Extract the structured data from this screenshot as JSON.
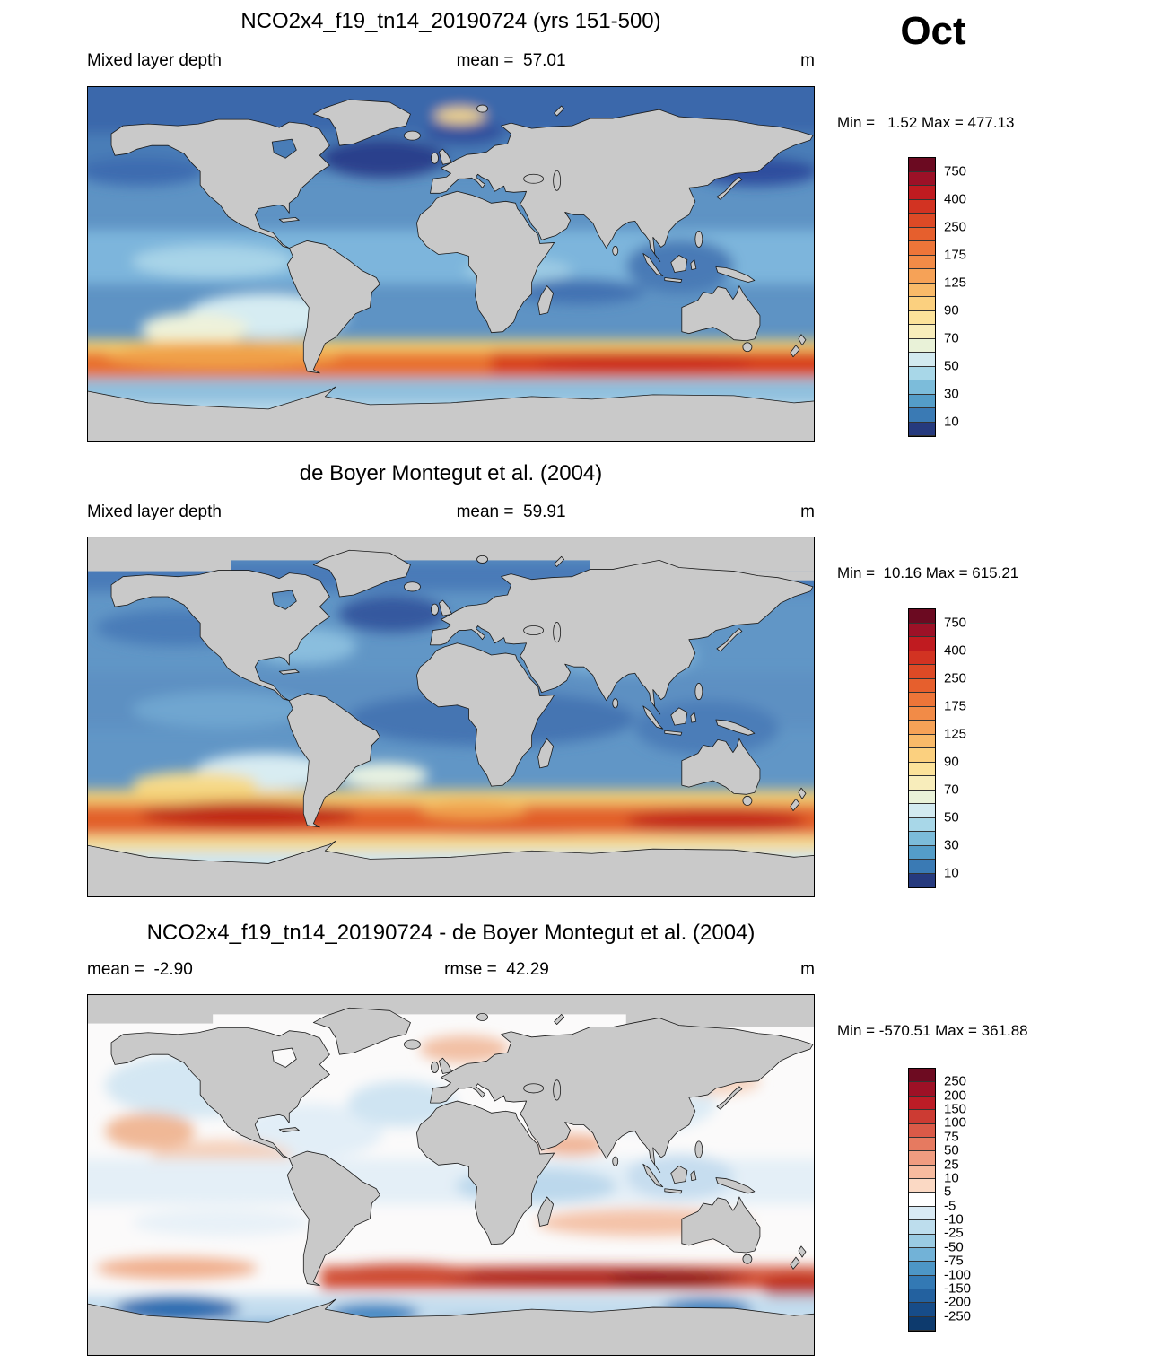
{
  "page": {
    "month": "Oct"
  },
  "panels": [
    {
      "title": "NCO2x4_f19_tn14_20190724 (yrs 151-500)",
      "left_label": "Mixed layer depth",
      "center_label": "mean =  57.01",
      "units": "m",
      "minmax_text": "Min =   1.52 Max = 477.13",
      "colorbar": {
        "colors": [
          "#6b0a21",
          "#9c1127",
          "#c01b20",
          "#d23322",
          "#dd4a26",
          "#e65f2d",
          "#ed7539",
          "#f28b47",
          "#f6a257",
          "#f9ba69",
          "#fbd07f",
          "#fce29a",
          "#f8edbb",
          "#e9f2d8",
          "#d2eaf0",
          "#a8d7e8",
          "#7cbcda",
          "#549dc8",
          "#3a7ab4",
          "#263a7e"
        ],
        "ticks": [
          {
            "label": "750",
            "pos": 1
          },
          {
            "label": "400",
            "pos": 3
          },
          {
            "label": "250",
            "pos": 5
          },
          {
            "label": "175",
            "pos": 7
          },
          {
            "label": "125",
            "pos": 9
          },
          {
            "label": "90",
            "pos": 11
          },
          {
            "label": "70",
            "pos": 13
          },
          {
            "label": "50",
            "pos": 15
          },
          {
            "label": "30",
            "pos": 17
          },
          {
            "label": "10",
            "pos": 19
          }
        ]
      }
    },
    {
      "title": "de Boyer Montegut et al. (2004)",
      "left_label": "Mixed layer depth",
      "center_label": "mean =  59.91",
      "units": "m",
      "minmax_text": "Min =  10.16 Max = 615.21",
      "colorbar": {
        "colors": [
          "#6b0a21",
          "#9c1127",
          "#c01b20",
          "#d23322",
          "#dd4a26",
          "#e65f2d",
          "#ed7539",
          "#f28b47",
          "#f6a257",
          "#f9ba69",
          "#fbd07f",
          "#fce29a",
          "#f8edbb",
          "#e9f2d8",
          "#d2eaf0",
          "#a8d7e8",
          "#7cbcda",
          "#549dc8",
          "#3a7ab4",
          "#263a7e"
        ],
        "ticks": [
          {
            "label": "750",
            "pos": 1
          },
          {
            "label": "400",
            "pos": 3
          },
          {
            "label": "250",
            "pos": 5
          },
          {
            "label": "175",
            "pos": 7
          },
          {
            "label": "125",
            "pos": 9
          },
          {
            "label": "90",
            "pos": 11
          },
          {
            "label": "70",
            "pos": 13
          },
          {
            "label": "50",
            "pos": 15
          },
          {
            "label": "30",
            "pos": 17
          },
          {
            "label": "10",
            "pos": 19
          }
        ]
      }
    },
    {
      "title": "NCO2x4_f19_tn14_20190724 - de Boyer Montegut et al. (2004)",
      "left_label": "mean =  -2.90",
      "center_label": "rmse =  42.29",
      "units": "m",
      "minmax_text": "Min = -570.51 Max = 361.88",
      "colorbar": {
        "colors": [
          "#6d0b21",
          "#9d1126",
          "#bc1c26",
          "#cc3b33",
          "#da5a48",
          "#e67a60",
          "#f09c80",
          "#f7bb9f",
          "#fbd9c4",
          "#ffffff",
          "#d9eaf4",
          "#bddded",
          "#9acbe3",
          "#72b2d7",
          "#4d96c6",
          "#3379b4",
          "#23619f",
          "#174c88",
          "#0d3a6d"
        ],
        "ticks": [
          {
            "label": "250",
            "pos": 1
          },
          {
            "label": "200",
            "pos": 2
          },
          {
            "label": "150",
            "pos": 3
          },
          {
            "label": "100",
            "pos": 4
          },
          {
            "label": "75",
            "pos": 5
          },
          {
            "label": "50",
            "pos": 6
          },
          {
            "label": "25",
            "pos": 7
          },
          {
            "label": "10",
            "pos": 8
          },
          {
            "label": "5",
            "pos": 9
          },
          {
            "label": "-5",
            "pos": 10
          },
          {
            "label": "-10",
            "pos": 11
          },
          {
            "label": "-25",
            "pos": 12
          },
          {
            "label": "-50",
            "pos": 13
          },
          {
            "label": "-75",
            "pos": 14
          },
          {
            "label": "-100",
            "pos": 15
          },
          {
            "label": "-150",
            "pos": 16
          },
          {
            "label": "-200",
            "pos": 17
          },
          {
            "label": "-250",
            "pos": 18
          }
        ]
      }
    }
  ],
  "chart_data": [
    {
      "type": "heatmap",
      "title": "NCO2x4_f19_tn14_20190724 (yrs 151-500)",
      "variable": "Mixed layer depth",
      "units": "m",
      "month": "Oct",
      "mean": 57.01,
      "min": 1.52,
      "max": 477.13,
      "colorbar_ticks": [
        750,
        400,
        250,
        175,
        125,
        90,
        70,
        50,
        30,
        10
      ],
      "projection": "global equirectangular world map",
      "legend_position": "right",
      "notes": "Model mixed layer depth: deep (orange/red, 125-750 m) circumpolar band near 40-55S; shallow (dark blue, <30 m) high-latitude North Atlantic/Arctic and tropics mid-blue; pale 70-90 m zone in subtropical southeast Pacific; deep-mixing yellow patch in Nordic Seas."
    },
    {
      "type": "heatmap",
      "title": "de Boyer Montegut et al. (2004)",
      "variable": "Mixed layer depth (observations)",
      "units": "m",
      "month": "Oct",
      "mean": 59.91,
      "min": 10.16,
      "max": 615.21,
      "colorbar_ticks": [
        750,
        400,
        250,
        175,
        125,
        90,
        70,
        50,
        30,
        10
      ],
      "projection": "global equirectangular world map",
      "legend_position": "right",
      "notes": "Observed climatology: mottled blues over most oceans, deep red band 40-55S strongest south of Africa/Australia and in southeast Pacific; Arctic masked gray (no data)."
    },
    {
      "type": "heatmap",
      "title": "NCO2x4_f19_tn14_20190724 - de Boyer Montegut et al. (2004)",
      "variable": "Mixed layer depth difference (model minus observations)",
      "units": "m",
      "month": "Oct",
      "mean": -2.9,
      "rmse": 42.29,
      "min": -570.51,
      "max": 361.88,
      "colorbar_ticks": [
        250,
        200,
        150,
        100,
        75,
        50,
        25,
        10,
        5,
        -5,
        -10,
        -25,
        -50,
        -75,
        -100,
        -150,
        -200,
        -250
      ],
      "projection": "global equirectangular world map",
      "legend_position": "right",
      "notes": "Difference map: mostly near-zero (white/pale), strong positive (dark red, >150 m) band ~45-55S in Indian/Pacific sector, strong negative (dark blue) patches adjacent to Antarctica; Arctic masked gray."
    }
  ]
}
